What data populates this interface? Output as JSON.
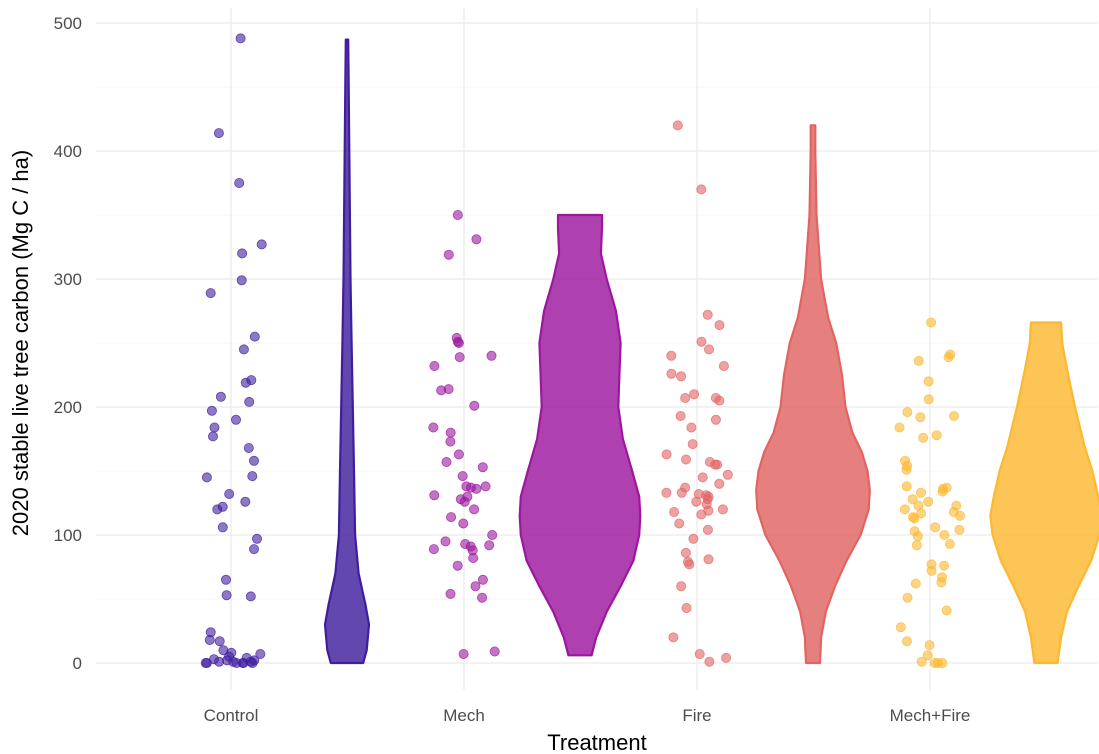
{
  "chart_data": {
    "type": "violin",
    "xlabel": "Treatment",
    "ylabel": "2020 stable live tree carbon (Mg C / ha)",
    "ylim": [
      0,
      500
    ],
    "yticks": [
      0,
      100,
      200,
      300,
      400,
      500
    ],
    "grid": true,
    "categories": [
      "Control",
      "Mech",
      "Fire",
      "Mech+Fire"
    ],
    "series": [
      {
        "category": "Control",
        "color": "#3f1e9e",
        "points": [
          488,
          414,
          375,
          327,
          320,
          299,
          289,
          255,
          245,
          221,
          219,
          208,
          204,
          197,
          190,
          184,
          177,
          168,
          158,
          146,
          145,
          132,
          126,
          122,
          120,
          106,
          97,
          89,
          65,
          53,
          52,
          24,
          18,
          17,
          10,
          8,
          7,
          5,
          4,
          3,
          2,
          2,
          1,
          1,
          1,
          0,
          0,
          0,
          0,
          0,
          0
        ],
        "violin": [
          [
            0,
            0.14
          ],
          [
            10,
            0.17
          ],
          [
            30,
            0.19
          ],
          [
            45,
            0.16
          ],
          [
            70,
            0.1
          ],
          [
            100,
            0.07
          ],
          [
            150,
            0.06
          ],
          [
            200,
            0.05
          ],
          [
            250,
            0.04
          ],
          [
            300,
            0.03
          ],
          [
            350,
            0.025
          ],
          [
            400,
            0.02
          ],
          [
            450,
            0.015
          ],
          [
            487,
            0.01
          ]
        ]
      },
      {
        "category": "Mech",
        "color": "#9c179e",
        "points": [
          350,
          331,
          319,
          254,
          251,
          250,
          240,
          239,
          232,
          214,
          213,
          201,
          184,
          180,
          173,
          163,
          157,
          153,
          146,
          138,
          138,
          137,
          136,
          131,
          130,
          128,
          126,
          120,
          114,
          109,
          100,
          95,
          93,
          92,
          91,
          89,
          88,
          82,
          76,
          65,
          60,
          54,
          51,
          9,
          7
        ],
        "violin": [
          [
            6,
            0.1
          ],
          [
            20,
            0.14
          ],
          [
            40,
            0.23
          ],
          [
            60,
            0.35
          ],
          [
            80,
            0.46
          ],
          [
            100,
            0.51
          ],
          [
            115,
            0.52
          ],
          [
            130,
            0.51
          ],
          [
            150,
            0.45
          ],
          [
            175,
            0.37
          ],
          [
            200,
            0.33
          ],
          [
            225,
            0.34
          ],
          [
            250,
            0.35
          ],
          [
            275,
            0.31
          ],
          [
            300,
            0.23
          ],
          [
            320,
            0.18
          ],
          [
            340,
            0.19
          ],
          [
            350,
            0.19
          ]
        ]
      },
      {
        "category": "Fire",
        "color": "#e16462",
        "points": [
          420,
          370,
          272,
          264,
          251,
          245,
          240,
          232,
          226,
          224,
          210,
          207,
          207,
          205,
          193,
          190,
          184,
          171,
          163,
          159,
          157,
          155,
          155,
          147,
          145,
          140,
          137,
          133,
          133,
          132,
          131,
          130,
          128,
          126,
          124,
          120,
          119,
          118,
          116,
          109,
          104,
          97,
          86,
          81,
          79,
          77,
          60,
          43,
          20,
          7,
          4,
          1
        ],
        "violin": [
          [
            0,
            0.06
          ],
          [
            20,
            0.07
          ],
          [
            40,
            0.11
          ],
          [
            60,
            0.19
          ],
          [
            80,
            0.29
          ],
          [
            100,
            0.41
          ],
          [
            120,
            0.48
          ],
          [
            135,
            0.49
          ],
          [
            150,
            0.47
          ],
          [
            165,
            0.42
          ],
          [
            180,
            0.34
          ],
          [
            200,
            0.28
          ],
          [
            225,
            0.25
          ],
          [
            250,
            0.2
          ],
          [
            270,
            0.13
          ],
          [
            300,
            0.07
          ],
          [
            350,
            0.03
          ],
          [
            400,
            0.02
          ],
          [
            420,
            0.02
          ]
        ]
      },
      {
        "category": "Mech+Fire",
        "color": "#fcb830",
        "points": [
          266,
          241,
          239,
          236,
          220,
          206,
          196,
          193,
          192,
          184,
          178,
          176,
          158,
          154,
          151,
          138,
          137,
          136,
          134,
          133,
          128,
          126,
          123,
          123,
          120,
          118,
          117,
          115,
          114,
          113,
          106,
          104,
          103,
          100,
          99,
          93,
          92,
          77,
          76,
          72,
          67,
          63,
          62,
          51,
          41,
          28,
          17,
          14,
          6,
          1,
          0,
          0,
          0
        ],
        "violin": [
          [
            0,
            0.1
          ],
          [
            20,
            0.13
          ],
          [
            40,
            0.18
          ],
          [
            60,
            0.28
          ],
          [
            80,
            0.39
          ],
          [
            100,
            0.46
          ],
          [
            115,
            0.48
          ],
          [
            130,
            0.45
          ],
          [
            150,
            0.4
          ],
          [
            170,
            0.33
          ],
          [
            200,
            0.25
          ],
          [
            230,
            0.18
          ],
          [
            250,
            0.14
          ],
          [
            266,
            0.13
          ]
        ]
      }
    ]
  }
}
